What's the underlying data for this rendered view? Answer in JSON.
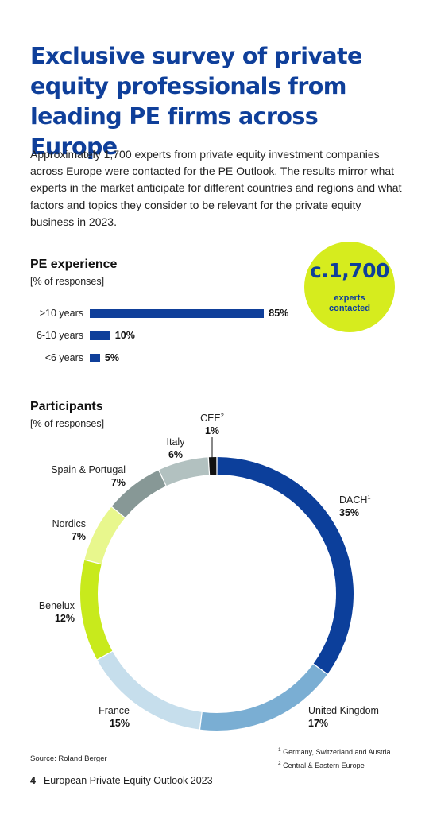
{
  "title": "Exclusive survey of private equity professionals from leading PE firms across Europe",
  "intro": "Approximately 1,700 experts from private equity investment companies across Europe were contacted for the PE Outlook. The results mirror what experts in the market anticipate for different countries and regions and what factors and topics they consider to be relevant for the private equity business in 2023.",
  "badge": {
    "value": "c.1,700",
    "label_line1": "experts",
    "label_line2": "contacted"
  },
  "experience": {
    "title": "PE experience",
    "subtitle": "[% of responses]"
  },
  "participants": {
    "title": "Participants",
    "subtitle": "[% of responses]"
  },
  "colors": {
    "brand_blue": "#0f3f9a",
    "accent_lime": "#d6ec1e"
  },
  "chart_data": [
    {
      "type": "bar",
      "orientation": "horizontal",
      "title": "PE experience",
      "subtitle": "[% of responses]",
      "categories": [
        ">10 years",
        "6-10 years",
        "<6 years"
      ],
      "values": [
        85,
        10,
        5
      ],
      "value_labels": [
        "85%",
        "10%",
        "5%"
      ],
      "xlim": [
        0,
        100
      ],
      "grid": false,
      "color": "#0f3f9a"
    },
    {
      "type": "pie",
      "style": "donut",
      "title": "Participants",
      "subtitle": "[% of responses]",
      "slices": [
        {
          "label": "DACH",
          "sup": "1",
          "value": 35,
          "value_label": "35%",
          "color": "#0c3f9b"
        },
        {
          "label": "United Kingdom",
          "sup": "",
          "value": 17,
          "value_label": "17%",
          "color": "#7aaed3"
        },
        {
          "label": "France",
          "sup": "",
          "value": 15,
          "value_label": "15%",
          "color": "#c6deec"
        },
        {
          "label": "Benelux",
          "sup": "",
          "value": 12,
          "value_label": "12%",
          "color": "#c8ea1c"
        },
        {
          "label": "Nordics",
          "sup": "",
          "value": 7,
          "value_label": "7%",
          "color": "#e8f78d"
        },
        {
          "label": "Spain & Portugal",
          "sup": "",
          "value": 7,
          "value_label": "7%",
          "color": "#879896"
        },
        {
          "label": "Italy",
          "sup": "",
          "value": 6,
          "value_label": "6%",
          "color": "#b2c1c0"
        },
        {
          "label": "CEE",
          "sup": "2",
          "value": 1,
          "value_label": "1%",
          "color": "#111111"
        }
      ]
    }
  ],
  "source": "Source: Roland Berger",
  "footnotes": [
    {
      "mark": "1",
      "text": "Germany, Switzerland and Austria"
    },
    {
      "mark": "2",
      "text": "Central & Eastern Europe"
    }
  ],
  "footer": {
    "page_number": "4",
    "publication": "European Private Equity Outlook 2023"
  }
}
